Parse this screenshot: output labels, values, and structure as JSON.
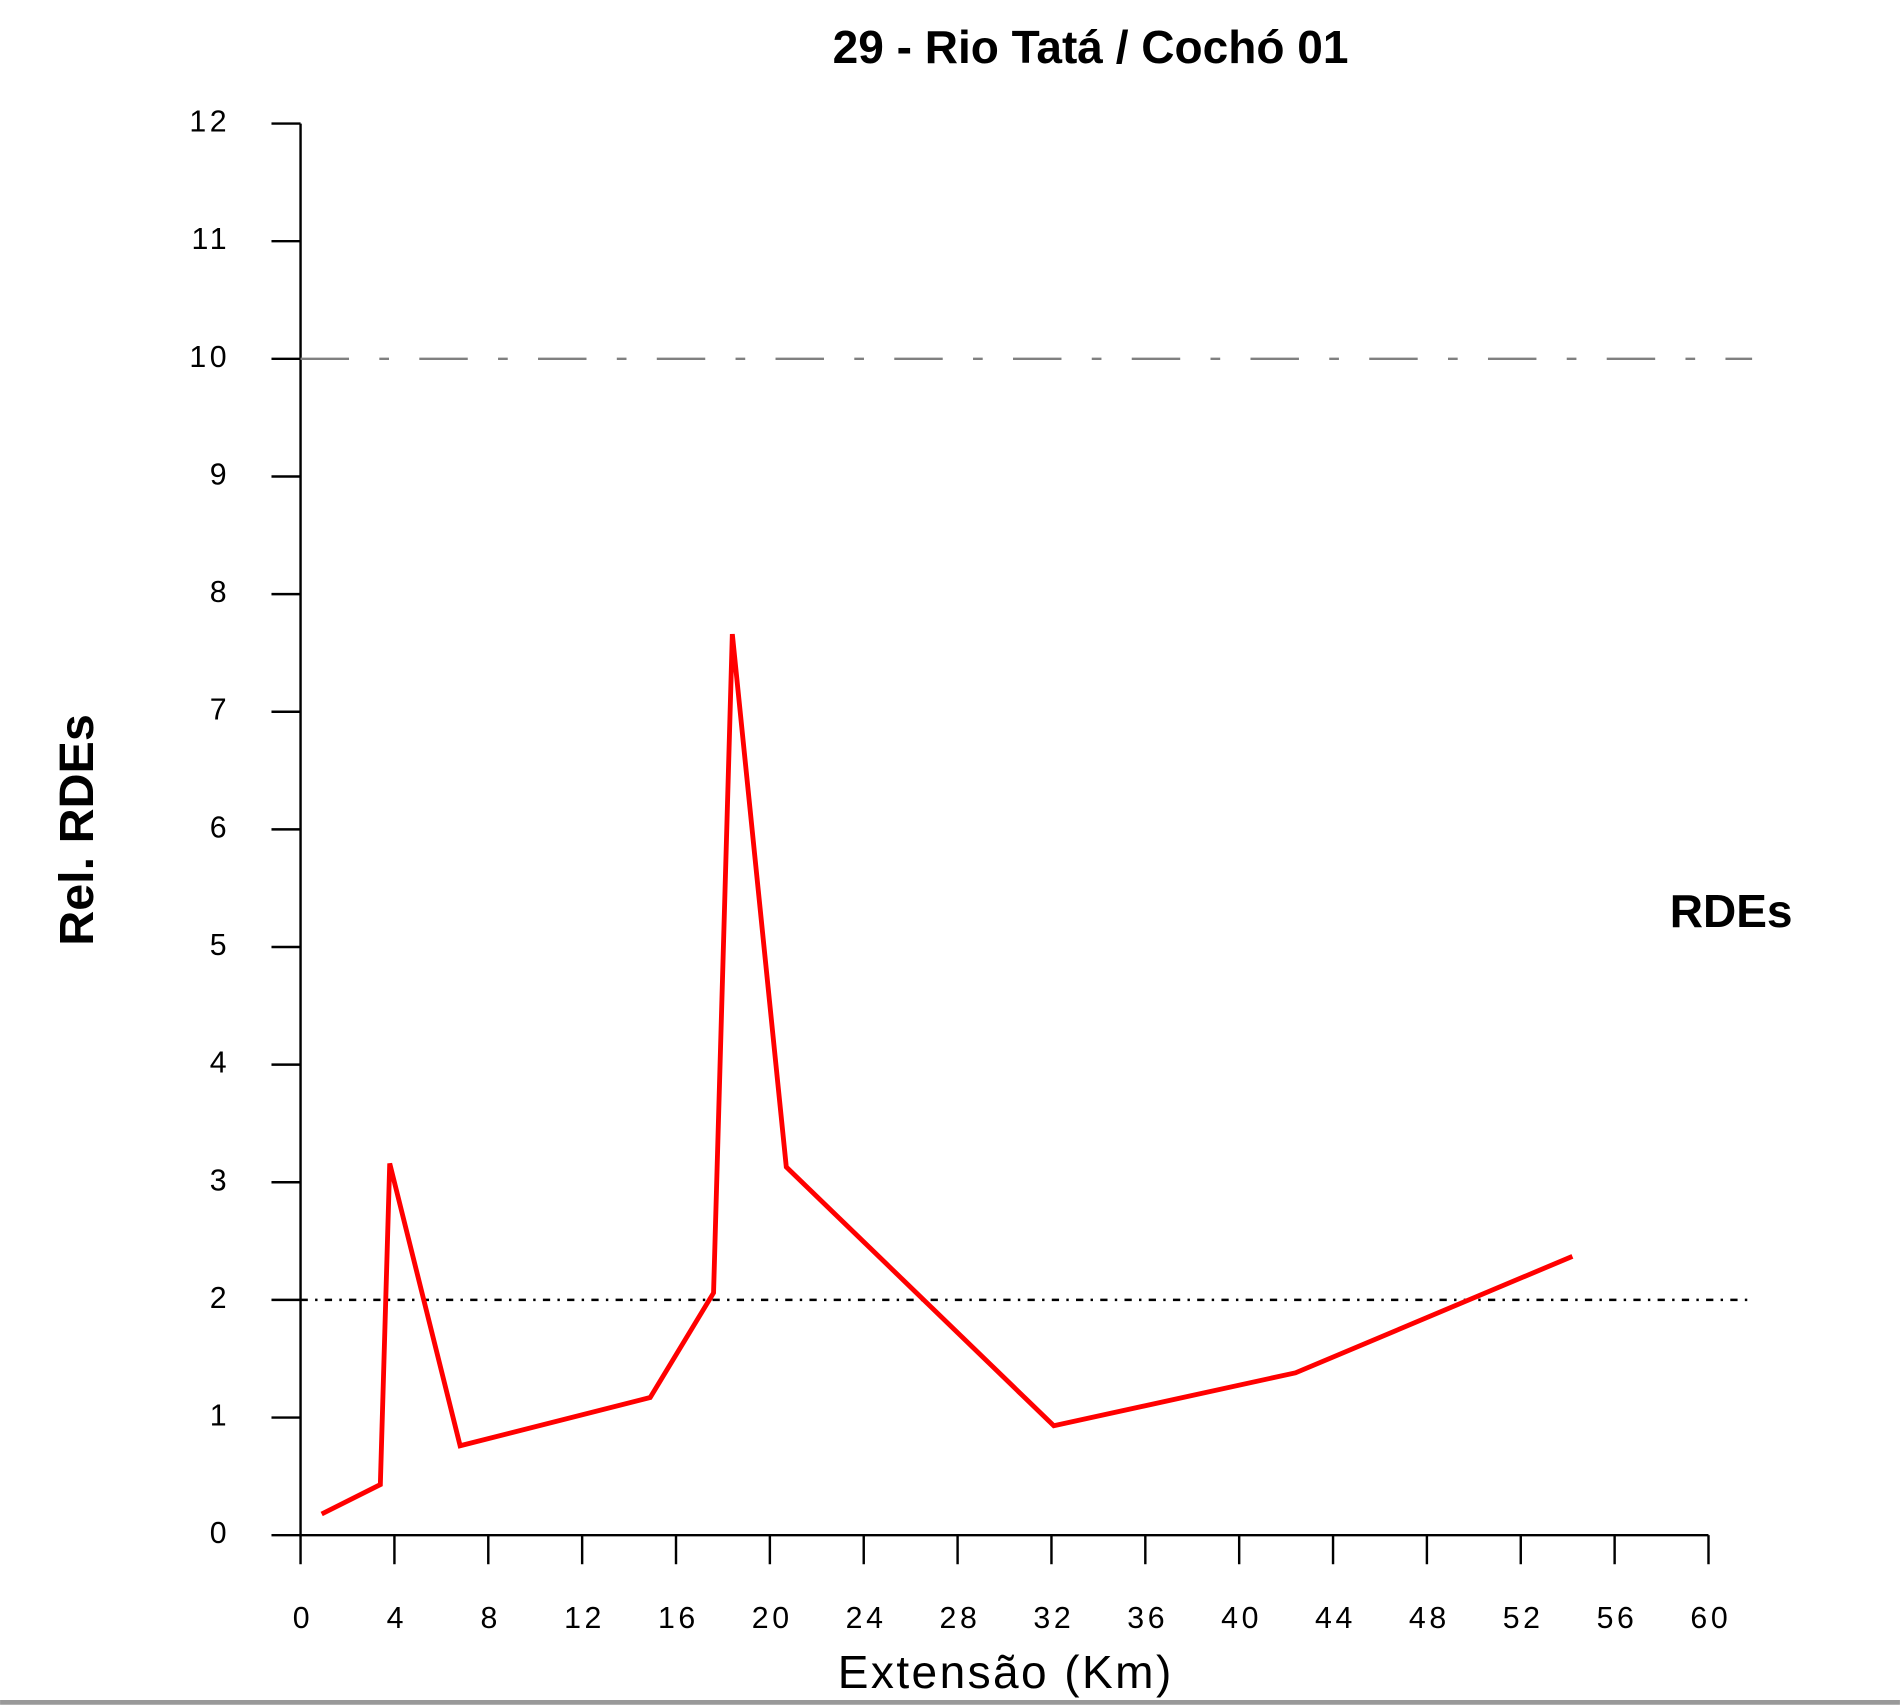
{
  "chart_data": {
    "type": "line",
    "title": "29 - Rio Tatá / Cochó 01",
    "x_label": "Extensão (Km)",
    "y_label": "Rel. RDEs",
    "x": [
      0.9,
      3.4,
      3.8,
      6.8,
      14.9,
      17.6,
      18.4,
      20.7,
      32.1,
      42.4,
      54.2
    ],
    "series": [
      {
        "name": "RDEs",
        "color": "#ff0000",
        "values": [
          0.18,
          0.43,
          3.16,
          0.76,
          1.17,
          2.06,
          7.66,
          3.13,
          0.93,
          1.38,
          2.37
        ]
      }
    ],
    "xlim": [
      0,
      60
    ],
    "xticks": [
      0,
      4,
      8,
      12,
      16,
      20,
      24,
      28,
      32,
      36,
      40,
      44,
      48,
      52,
      56,
      60
    ],
    "ylim": [
      0,
      12
    ],
    "yticks": [
      0,
      1,
      2,
      3,
      4,
      5,
      6,
      7,
      8,
      9,
      10,
      11,
      12
    ],
    "reference_lines": [
      {
        "value": 10,
        "color": "#808080",
        "style": "dashed"
      },
      {
        "value": 2,
        "color": "#000000",
        "style": "dashdot"
      }
    ],
    "grid": false
  }
}
